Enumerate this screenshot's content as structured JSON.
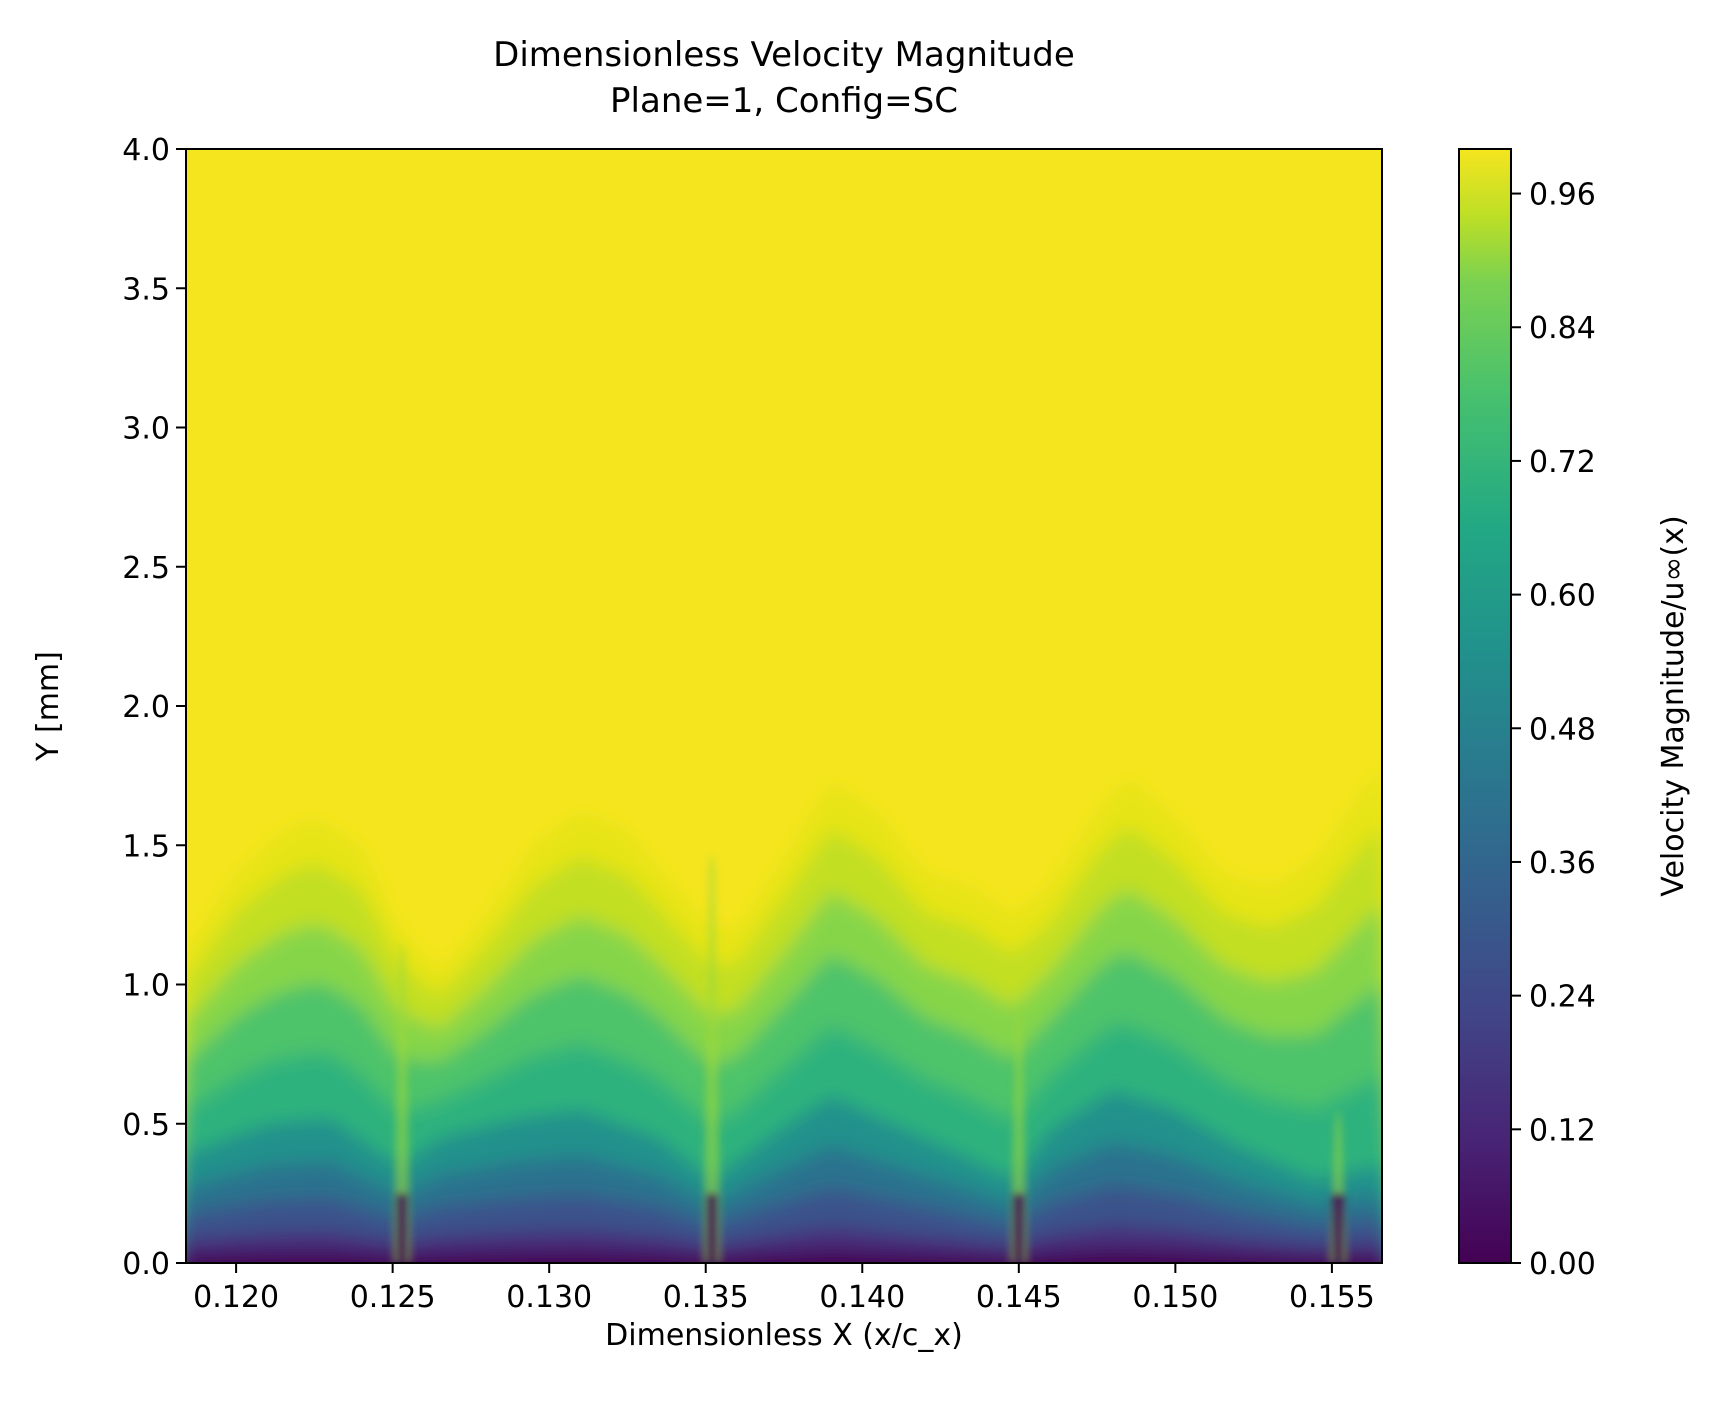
{
  "chart_data": {
    "type": "heatmap",
    "title_line1": "Dimensionless Velocity Magnitude",
    "title_line2": "Plane=1, Config=SC",
    "xlabel": "Dimensionless X (x/c_x)",
    "ylabel": "Y [mm]",
    "colorbar_label": "Velocity Magnitude/u∞(x)",
    "xlim": [
      0.1184,
      0.1566
    ],
    "ylim": [
      0.0,
      4.0
    ],
    "x_ticks": [
      0.12,
      0.125,
      0.13,
      0.135,
      0.14,
      0.145,
      0.15,
      0.155
    ],
    "x_tick_labels": [
      "0.120",
      "0.125",
      "0.130",
      "0.135",
      "0.140",
      "0.145",
      "0.150",
      "0.155"
    ],
    "y_ticks": [
      0.0,
      0.5,
      1.0,
      1.5,
      2.0,
      2.5,
      3.0,
      3.5,
      4.0
    ],
    "y_tick_labels": [
      "0.0",
      "0.5",
      "1.0",
      "1.5",
      "2.0",
      "2.5",
      "3.0",
      "3.5",
      "4.0"
    ],
    "colorbar_range": [
      0.0,
      1.0
    ],
    "colorbar_ticks": [
      0.0,
      0.12,
      0.24,
      0.36,
      0.48,
      0.6,
      0.72,
      0.84,
      0.96
    ],
    "colorbar_tick_labels": [
      "0.00",
      "0.12",
      "0.24",
      "0.36",
      "0.48",
      "0.60",
      "0.72",
      "0.84",
      "0.96"
    ],
    "colormap": "viridis",
    "boundary_layer_edge": {
      "x": [
        0.1186,
        0.12,
        0.1215,
        0.1225,
        0.124,
        0.1252,
        0.1265,
        0.128,
        0.1295,
        0.131,
        0.1325,
        0.134,
        0.1352,
        0.136,
        0.1375,
        0.139,
        0.1405,
        0.142,
        0.1435,
        0.1448,
        0.146,
        0.1475,
        0.1485,
        0.15,
        0.1515,
        0.153,
        0.1545,
        0.1555,
        0.1565
      ],
      "y": [
        1.15,
        1.4,
        1.55,
        1.6,
        1.5,
        1.2,
        1.05,
        1.25,
        1.5,
        1.62,
        1.55,
        1.35,
        1.2,
        1.2,
        1.45,
        1.73,
        1.62,
        1.4,
        1.35,
        1.25,
        1.35,
        1.62,
        1.74,
        1.6,
        1.4,
        1.35,
        1.45,
        1.62,
        1.78
      ]
    },
    "low_velocity_layer_edge": {
      "x": [
        0.1186,
        0.121,
        0.123,
        0.1252,
        0.1265,
        0.129,
        0.131,
        0.1335,
        0.1352,
        0.137,
        0.139,
        0.141,
        0.143,
        0.1448,
        0.146,
        0.148,
        0.15,
        0.152,
        0.1545,
        0.1565
      ],
      "y": [
        0.4,
        0.5,
        0.52,
        0.35,
        0.45,
        0.52,
        0.55,
        0.45,
        0.3,
        0.45,
        0.6,
        0.5,
        0.4,
        0.3,
        0.48,
        0.62,
        0.55,
        0.42,
        0.3,
        0.35
      ]
    },
    "spikes": [
      {
        "x": 0.1253,
        "y_top": 1.2
      },
      {
        "x": 0.1352,
        "y_top": 1.52
      },
      {
        "x": 0.145,
        "y_top": 0.95
      },
      {
        "x": 0.1552,
        "y_top": 0.6
      }
    ]
  }
}
